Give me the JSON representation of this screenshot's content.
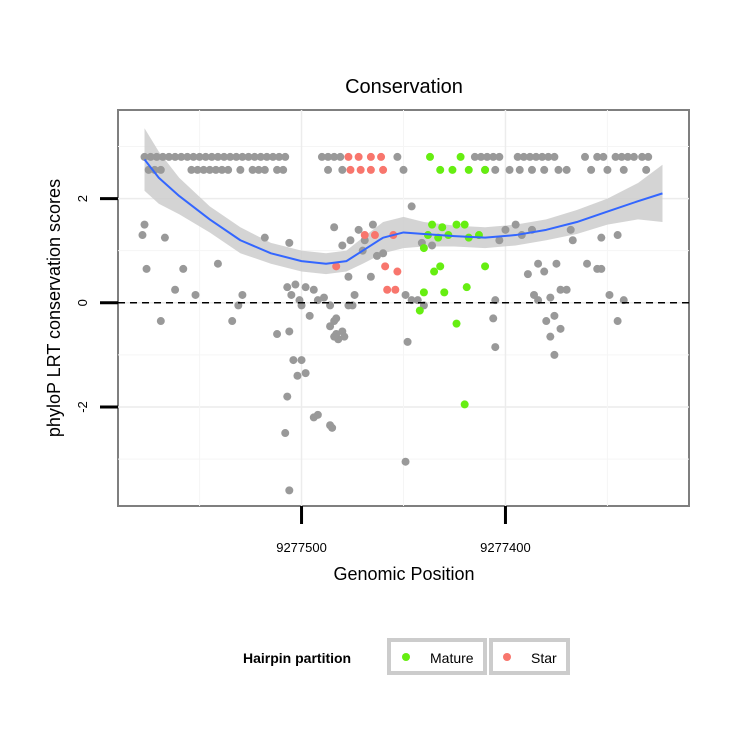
{
  "chart_data": {
    "type": "scatter",
    "title": "Conservation",
    "xlabel": "Genomic Position",
    "ylabel": "phyloP LRT conservation scores",
    "xlim": [
      9277590,
      9277310
    ],
    "ylim": [
      -3.9,
      3.7
    ],
    "x_reversed": true,
    "x_ticks": [
      9277500,
      9277400
    ],
    "x_tick_labels": [
      "9277500",
      "9277400"
    ],
    "y_ticks": [
      -2,
      0,
      2
    ],
    "y_tick_labels": [
      "-2",
      "0",
      "2"
    ],
    "reference_line": {
      "y": 0,
      "style": "dashed"
    },
    "grid": true,
    "legend_position": "bottom",
    "legend_title": "Hairpin partition",
    "colors": {
      "other": "#999999",
      "Mature": "#66ee11",
      "Star": "#f8766d",
      "smooth": "#3366ff",
      "ribbon": "#cccccc"
    },
    "series": [
      {
        "name": "Mature",
        "points": [
          [
            9277437,
            2.8
          ],
          [
            9277422,
            2.8
          ],
          [
            9277432,
            2.55
          ],
          [
            9277426,
            2.55
          ],
          [
            9277418,
            2.55
          ],
          [
            9277410,
            2.55
          ],
          [
            9277436,
            1.5
          ],
          [
            9277431,
            1.45
          ],
          [
            9277424,
            1.5
          ],
          [
            9277420,
            1.5
          ],
          [
            9277438,
            1.3
          ],
          [
            9277433,
            1.25
          ],
          [
            9277428,
            1.3
          ],
          [
            9277413,
            1.3
          ],
          [
            9277418,
            1.25
          ],
          [
            9277440,
            1.05
          ],
          [
            9277435,
            0.6
          ],
          [
            9277432,
            0.7
          ],
          [
            9277410,
            0.7
          ],
          [
            9277440,
            0.2
          ],
          [
            9277430,
            0.2
          ],
          [
            9277419,
            0.3
          ],
          [
            9277442,
            -0.15
          ],
          [
            9277424,
            -0.4
          ],
          [
            9277420,
            -1.95
          ]
        ]
      },
      {
        "name": "Star",
        "points": [
          [
            9277477,
            2.8
          ],
          [
            9277472,
            2.8
          ],
          [
            9277466,
            2.8
          ],
          [
            9277461,
            2.8
          ],
          [
            9277476,
            2.55
          ],
          [
            9277471,
            2.55
          ],
          [
            9277466,
            2.55
          ],
          [
            9277460,
            2.55
          ],
          [
            9277469,
            1.3
          ],
          [
            9277464,
            1.3
          ],
          [
            9277455,
            1.3
          ],
          [
            9277483,
            0.7
          ],
          [
            9277459,
            0.7
          ],
          [
            9277453,
            0.6
          ],
          [
            9277458,
            0.25
          ],
          [
            9277454,
            0.25
          ]
        ]
      },
      {
        "name": "",
        "points": [
          [
            9277577,
            2.8
          ],
          [
            9277574,
            2.8
          ],
          [
            9277571,
            2.8
          ],
          [
            9277568,
            2.8
          ],
          [
            9277565,
            2.8
          ],
          [
            9277562,
            2.8
          ],
          [
            9277559,
            2.8
          ],
          [
            9277556,
            2.8
          ],
          [
            9277553,
            2.8
          ],
          [
            9277550,
            2.8
          ],
          [
            9277547,
            2.8
          ],
          [
            9277544,
            2.8
          ],
          [
            9277541,
            2.8
          ],
          [
            9277538,
            2.8
          ],
          [
            9277535,
            2.8
          ],
          [
            9277532,
            2.8
          ],
          [
            9277529,
            2.8
          ],
          [
            9277526,
            2.8
          ],
          [
            9277523,
            2.8
          ],
          [
            9277520,
            2.8
          ],
          [
            9277517,
            2.8
          ],
          [
            9277514,
            2.8
          ],
          [
            9277511,
            2.8
          ],
          [
            9277508,
            2.8
          ],
          [
            9277575,
            2.55
          ],
          [
            9277572,
            2.55
          ],
          [
            9277569,
            2.55
          ],
          [
            9277554,
            2.55
          ],
          [
            9277551,
            2.55
          ],
          [
            9277548,
            2.55
          ],
          [
            9277545,
            2.55
          ],
          [
            9277542,
            2.55
          ],
          [
            9277539,
            2.55
          ],
          [
            9277536,
            2.55
          ],
          [
            9277530,
            2.55
          ],
          [
            9277524,
            2.55
          ],
          [
            9277521,
            2.55
          ],
          [
            9277518,
            2.55
          ],
          [
            9277512,
            2.55
          ],
          [
            9277509,
            2.55
          ],
          [
            9277490,
            2.8
          ],
          [
            9277487,
            2.8
          ],
          [
            9277484,
            2.8
          ],
          [
            9277481,
            2.8
          ],
          [
            9277487,
            2.55
          ],
          [
            9277480,
            2.55
          ],
          [
            9277450,
            2.55
          ],
          [
            9277453,
            2.8
          ],
          [
            9277415,
            2.8
          ],
          [
            9277412,
            2.8
          ],
          [
            9277409,
            2.8
          ],
          [
            9277406,
            2.8
          ],
          [
            9277403,
            2.8
          ],
          [
            9277410,
            2.55
          ],
          [
            9277405,
            2.55
          ],
          [
            9277398,
            2.55
          ],
          [
            9277394,
            2.8
          ],
          [
            9277391,
            2.8
          ],
          [
            9277388,
            2.8
          ],
          [
            9277385,
            2.8
          ],
          [
            9277382,
            2.8
          ],
          [
            9277379,
            2.8
          ],
          [
            9277376,
            2.8
          ],
          [
            9277393,
            2.55
          ],
          [
            9277387,
            2.55
          ],
          [
            9277381,
            2.55
          ],
          [
            9277374,
            2.55
          ],
          [
            9277370,
            2.55
          ],
          [
            9277361,
            2.8
          ],
          [
            9277355,
            2.8
          ],
          [
            9277352,
            2.8
          ],
          [
            9277346,
            2.8
          ],
          [
            9277343,
            2.8
          ],
          [
            9277340,
            2.8
          ],
          [
            9277337,
            2.8
          ],
          [
            9277333,
            2.8
          ],
          [
            9277330,
            2.8
          ],
          [
            9277358,
            2.55
          ],
          [
            9277350,
            2.55
          ],
          [
            9277342,
            2.55
          ],
          [
            9277331,
            2.55
          ],
          [
            9277577,
            1.5
          ],
          [
            9277578,
            1.3
          ],
          [
            9277567,
            1.25
          ],
          [
            9277576,
            0.65
          ],
          [
            9277558,
            0.65
          ],
          [
            9277541,
            0.75
          ],
          [
            9277562,
            0.25
          ],
          [
            9277569,
            -0.35
          ],
          [
            9277552,
            0.15
          ],
          [
            9277534,
            -0.35
          ],
          [
            9277531,
            -0.05
          ],
          [
            9277529,
            0.15
          ],
          [
            9277518,
            1.25
          ],
          [
            9277506,
            1.15
          ],
          [
            9277512,
            -0.6
          ],
          [
            9277507,
            0.3
          ],
          [
            9277505,
            0.15
          ],
          [
            9277503,
            0.35
          ],
          [
            9277501,
            0.05
          ],
          [
            9277500,
            -0.05
          ],
          [
            9277498,
            0.3
          ],
          [
            9277496,
            -0.25
          ],
          [
            9277494,
            0.25
          ],
          [
            9277492,
            0.05
          ],
          [
            9277489,
            0.1
          ],
          [
            9277486,
            -0.05
          ],
          [
            9277486,
            -0.45
          ],
          [
            9277484,
            -0.35
          ],
          [
            9277482,
            -0.7
          ],
          [
            9277480,
            -0.55
          ],
          [
            9277483,
            -0.3
          ],
          [
            9277479,
            -0.65
          ],
          [
            9277477,
            0.5
          ],
          [
            9277477,
            -0.05
          ],
          [
            9277474,
            0.15
          ],
          [
            9277475,
            -0.05
          ],
          [
            9277506,
            -0.55
          ],
          [
            9277504,
            -1.1
          ],
          [
            9277502,
            -1.4
          ],
          [
            9277500,
            -1.1
          ],
          [
            9277498,
            -1.35
          ],
          [
            9277507,
            -1.8
          ],
          [
            9277508,
            -2.5
          ],
          [
            9277506,
            -3.6
          ],
          [
            9277494,
            -2.2
          ],
          [
            9277492,
            -2.15
          ],
          [
            9277486,
            -2.35
          ],
          [
            9277485,
            -2.4
          ],
          [
            9277483,
            -0.6
          ],
          [
            9277484,
            -0.65
          ],
          [
            9277472,
            1.4
          ],
          [
            9277469,
            1.2
          ],
          [
            9277465,
            1.5
          ],
          [
            9277484,
            1.45
          ],
          [
            9277480,
            1.1
          ],
          [
            9277476,
            1.2
          ],
          [
            9277470,
            1.0
          ],
          [
            9277463,
            0.9
          ],
          [
            9277460,
            0.95
          ],
          [
            9277466,
            0.5
          ],
          [
            9277446,
            1.85
          ],
          [
            9277449,
            0.15
          ],
          [
            9277446,
            0.05
          ],
          [
            9277443,
            0.05
          ],
          [
            9277440,
            -0.05
          ],
          [
            9277448,
            -0.75
          ],
          [
            9277449,
            -3.05
          ],
          [
            9277441,
            1.15
          ],
          [
            9277436,
            1.1
          ],
          [
            9277395,
            1.5
          ],
          [
            9277400,
            1.4
          ],
          [
            9277403,
            1.2
          ],
          [
            9277392,
            1.3
          ],
          [
            9277387,
            1.4
          ],
          [
            9277384,
            0.75
          ],
          [
            9277375,
            0.75
          ],
          [
            9277389,
            0.55
          ],
          [
            9277381,
            0.6
          ],
          [
            9277386,
            0.15
          ],
          [
            9277384,
            0.05
          ],
          [
            9277378,
            0.1
          ],
          [
            9277376,
            -0.25
          ],
          [
            9277380,
            -0.35
          ],
          [
            9277373,
            0.25
          ],
          [
            9277370,
            0.25
          ],
          [
            9277368,
            1.4
          ],
          [
            9277367,
            1.2
          ],
          [
            9277360,
            0.75
          ],
          [
            9277355,
            0.65
          ],
          [
            9277353,
            0.65
          ],
          [
            9277349,
            0.15
          ],
          [
            9277353,
            1.25
          ],
          [
            9277345,
            1.3
          ],
          [
            9277342,
            0.05
          ],
          [
            9277345,
            -0.35
          ],
          [
            9277378,
            -0.65
          ],
          [
            9277376,
            -1.0
          ],
          [
            9277373,
            -0.5
          ],
          [
            9277405,
            0.05
          ],
          [
            9277406,
            -0.3
          ],
          [
            9277405,
            -0.85
          ]
        ]
      }
    ],
    "smooth": {
      "line": [
        [
          9277577,
          2.75
        ],
        [
          9277570,
          2.4
        ],
        [
          9277560,
          2.05
        ],
        [
          9277545,
          1.6
        ],
        [
          9277530,
          1.2
        ],
        [
          9277515,
          0.95
        ],
        [
          9277500,
          0.8
        ],
        [
          9277488,
          0.75
        ],
        [
          9277478,
          0.8
        ],
        [
          9277470,
          1.0
        ],
        [
          9277460,
          1.25
        ],
        [
          9277450,
          1.35
        ],
        [
          9277440,
          1.32
        ],
        [
          9277425,
          1.28
        ],
        [
          9277410,
          1.25
        ],
        [
          9277395,
          1.3
        ],
        [
          9277380,
          1.4
        ],
        [
          9277365,
          1.55
        ],
        [
          9277350,
          1.75
        ],
        [
          9277335,
          1.95
        ],
        [
          9277323,
          2.1
        ]
      ],
      "upper": [
        [
          9277577,
          3.35
        ],
        [
          9277570,
          2.9
        ],
        [
          9277560,
          2.4
        ],
        [
          9277545,
          1.85
        ],
        [
          9277530,
          1.45
        ],
        [
          9277515,
          1.15
        ],
        [
          9277500,
          1.0
        ],
        [
          9277488,
          0.95
        ],
        [
          9277478,
          1.0
        ],
        [
          9277470,
          1.25
        ],
        [
          9277460,
          1.55
        ],
        [
          9277450,
          1.65
        ],
        [
          9277440,
          1.55
        ],
        [
          9277425,
          1.48
        ],
        [
          9277410,
          1.45
        ],
        [
          9277395,
          1.5
        ],
        [
          9277380,
          1.6
        ],
        [
          9277365,
          1.78
        ],
        [
          9277350,
          2.0
        ],
        [
          9277335,
          2.3
        ],
        [
          9277323,
          2.65
        ]
      ],
      "lower": [
        [
          9277577,
          2.15
        ],
        [
          9277570,
          1.9
        ],
        [
          9277560,
          1.7
        ],
        [
          9277545,
          1.35
        ],
        [
          9277530,
          0.95
        ],
        [
          9277515,
          0.75
        ],
        [
          9277500,
          0.6
        ],
        [
          9277488,
          0.55
        ],
        [
          9277478,
          0.6
        ],
        [
          9277470,
          0.75
        ],
        [
          9277460,
          0.95
        ],
        [
          9277450,
          1.05
        ],
        [
          9277440,
          1.08
        ],
        [
          9277425,
          1.08
        ],
        [
          9277410,
          1.05
        ],
        [
          9277395,
          1.1
        ],
        [
          9277380,
          1.2
        ],
        [
          9277365,
          1.32
        ],
        [
          9277350,
          1.5
        ],
        [
          9277335,
          1.6
        ],
        [
          9277323,
          1.55
        ]
      ]
    }
  }
}
